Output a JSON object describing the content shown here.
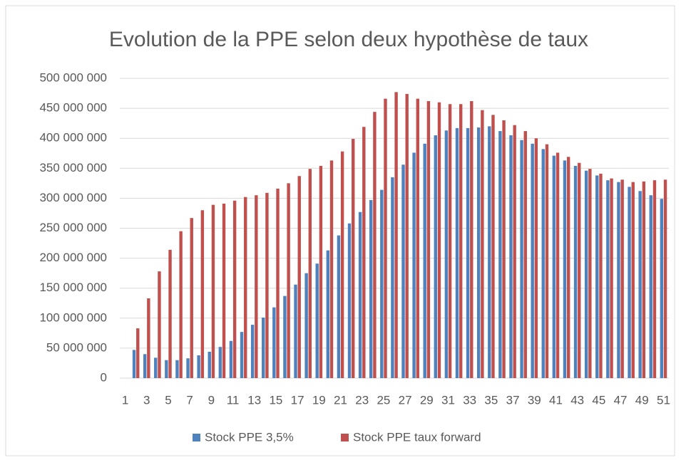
{
  "chart_data": {
    "type": "bar",
    "title": "Evolution de la PPE selon deux hypothèse de taux",
    "categories": [
      "1",
      null,
      "3",
      null,
      "5",
      null,
      "7",
      null,
      "9",
      null,
      "11",
      null,
      "13",
      null,
      "15",
      null,
      "17",
      null,
      "19",
      null,
      "21",
      null,
      "23",
      null,
      "25",
      null,
      "27",
      null,
      "29",
      null,
      "31",
      null,
      "33",
      null,
      "35",
      null,
      "37",
      null,
      "39",
      null,
      "41",
      null,
      "43",
      null,
      "45",
      null,
      "47",
      null,
      "49",
      null,
      "51"
    ],
    "series": [
      {
        "name": "Stock PPE 3,5%",
        "color": "#4f81bd",
        "values": [
          null,
          47000000,
          40000000,
          34000000,
          30000000,
          30000000,
          33000000,
          38000000,
          44000000,
          52000000,
          62000000,
          77000000,
          89000000,
          101000000,
          118000000,
          137000000,
          156000000,
          175000000,
          191000000,
          213000000,
          238000000,
          258000000,
          277000000,
          297000000,
          314000000,
          335000000,
          356000000,
          376000000,
          391000000,
          405000000,
          413000000,
          417000000,
          417000000,
          418000000,
          420000000,
          412000000,
          405000000,
          397000000,
          391000000,
          382000000,
          371000000,
          363000000,
          354000000,
          346000000,
          338000000,
          330000000,
          327000000,
          319000000,
          312000000,
          305000000,
          299000000
        ]
      },
      {
        "name": "Stock PPE taux forward",
        "color": "#c0504d",
        "values": [
          null,
          83000000,
          133000000,
          178000000,
          214000000,
          245000000,
          267000000,
          280000000,
          289000000,
          291000000,
          296000000,
          302000000,
          305000000,
          309000000,
          316000000,
          325000000,
          337000000,
          349000000,
          354000000,
          363000000,
          378000000,
          399000000,
          419000000,
          444000000,
          466000000,
          477000000,
          474000000,
          466000000,
          462000000,
          460000000,
          457000000,
          457000000,
          462000000,
          447000000,
          439000000,
          430000000,
          422000000,
          412000000,
          400000000,
          390000000,
          376000000,
          369000000,
          359000000,
          349000000,
          341000000,
          333000000,
          331000000,
          327000000,
          328000000,
          330000000,
          331000000
        ]
      }
    ],
    "ylim": [
      0,
      500000000
    ],
    "yticks": [
      0,
      {
        "value": 50000000,
        "label": "50 000 000"
      },
      {
        "value": 100000000,
        "label": "100 000 000"
      },
      {
        "value": 150000000,
        "label": "150 000 000"
      },
      {
        "value": 200000000,
        "label": "200 000 000"
      },
      {
        "value": 250000000,
        "label": "250 000 000"
      },
      {
        "value": 300000000,
        "label": "300 000 000"
      },
      {
        "value": 350000000,
        "label": "350 000 000"
      },
      {
        "value": 400000000,
        "label": "400 000 000"
      },
      {
        "value": 450000000,
        "label": "450 000 000"
      },
      {
        "value": 500000000,
        "label": "500 000 000"
      }
    ],
    "grid": true,
    "legend": "bottom"
  }
}
